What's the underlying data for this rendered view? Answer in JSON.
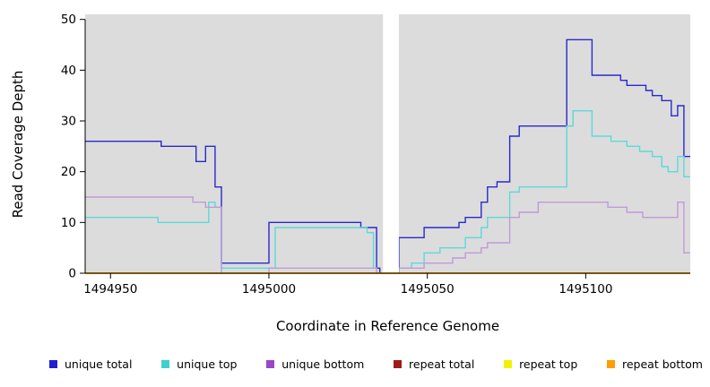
{
  "figure": {
    "background": "#FFFFFF"
  },
  "chart_data": {
    "type": "line",
    "step": true,
    "title": "",
    "xlabel": "Coordinate in Reference Genome",
    "ylabel": "Read Coverage Depth",
    "xlim": [
      1494942,
      1495133
    ],
    "ylim": [
      0,
      51
    ],
    "x_ticks": [
      1494950,
      1495000,
      1495050,
      1495100
    ],
    "y_ticks": [
      0,
      10,
      20,
      30,
      40,
      50
    ],
    "panel_background": "#DCDCDC",
    "grid": false,
    "masked_region": {
      "from": 1495036,
      "to": 1495041,
      "color": "#FFFFFF"
    },
    "series": [
      {
        "name": "unique total",
        "color": "#2929CE",
        "points": [
          [
            1494942,
            26
          ],
          [
            1494966,
            25
          ],
          [
            1494977,
            22
          ],
          [
            1494980,
            25
          ],
          [
            1494983,
            17
          ],
          [
            1494985,
            2
          ],
          [
            1495000,
            10
          ],
          [
            1495029,
            9
          ],
          [
            1495034,
            1
          ],
          [
            1495035,
            0
          ],
          [
            1495041,
            7
          ],
          [
            1495049,
            9
          ],
          [
            1495060,
            10
          ],
          [
            1495062,
            11
          ],
          [
            1495067,
            14
          ],
          [
            1495069,
            17
          ],
          [
            1495072,
            18
          ],
          [
            1495076,
            27
          ],
          [
            1495079,
            29
          ],
          [
            1495094,
            46
          ],
          [
            1495102,
            39
          ],
          [
            1495111,
            38
          ],
          [
            1495113,
            37
          ],
          [
            1495119,
            36
          ],
          [
            1495121,
            35
          ],
          [
            1495124,
            34
          ],
          [
            1495127,
            31
          ],
          [
            1495129,
            33
          ],
          [
            1495131,
            23
          ]
        ]
      },
      {
        "name": "unique top",
        "color": "#5CD9D9",
        "points": [
          [
            1494942,
            11
          ],
          [
            1494965,
            10
          ],
          [
            1494981,
            14
          ],
          [
            1494983,
            13
          ],
          [
            1494985,
            1
          ],
          [
            1495002,
            9
          ],
          [
            1495031,
            8
          ],
          [
            1495033,
            1
          ],
          [
            1495034,
            0
          ],
          [
            1495041,
            1
          ],
          [
            1495045,
            2
          ],
          [
            1495049,
            4
          ],
          [
            1495054,
            5
          ],
          [
            1495062,
            7
          ],
          [
            1495067,
            9
          ],
          [
            1495069,
            11
          ],
          [
            1495076,
            16
          ],
          [
            1495079,
            17
          ],
          [
            1495094,
            29
          ],
          [
            1495096,
            32
          ],
          [
            1495102,
            27
          ],
          [
            1495108,
            26
          ],
          [
            1495113,
            25
          ],
          [
            1495117,
            24
          ],
          [
            1495121,
            23
          ],
          [
            1495124,
            21
          ],
          [
            1495126,
            20
          ],
          [
            1495129,
            23
          ],
          [
            1495131,
            19
          ]
        ]
      },
      {
        "name": "unique bottom",
        "color": "#C09AD9",
        "points": [
          [
            1494942,
            15
          ],
          [
            1494976,
            14
          ],
          [
            1494980,
            13
          ],
          [
            1494985,
            0
          ],
          [
            1495000,
            1
          ],
          [
            1495034,
            0
          ],
          [
            1495041,
            1
          ],
          [
            1495049,
            2
          ],
          [
            1495058,
            3
          ],
          [
            1495062,
            4
          ],
          [
            1495067,
            5
          ],
          [
            1495069,
            6
          ],
          [
            1495076,
            11
          ],
          [
            1495079,
            12
          ],
          [
            1495085,
            14
          ],
          [
            1495107,
            13
          ],
          [
            1495113,
            12
          ],
          [
            1495118,
            11
          ],
          [
            1495129,
            14
          ],
          [
            1495131,
            4
          ]
        ]
      },
      {
        "name": "repeat total",
        "color": "#9E1B1B",
        "points": [
          [
            1494942,
            0
          ],
          [
            1495133,
            0
          ]
        ]
      },
      {
        "name": "repeat top",
        "color": "#F2F200",
        "points": [
          [
            1494942,
            0
          ],
          [
            1495133,
            0
          ]
        ]
      },
      {
        "name": "repeat bottom",
        "color": "#FF9D00",
        "points": [
          [
            1494942,
            0
          ],
          [
            1495133,
            0
          ]
        ]
      }
    ],
    "legend": {
      "position": "bottom",
      "items": [
        {
          "label": "unique total",
          "color": "#1F1FD1"
        },
        {
          "label": "unique top",
          "color": "#3ECFCF"
        },
        {
          "label": "unique bottom",
          "color": "#9A46C8"
        },
        {
          "label": "repeat total",
          "color": "#9E1B1B"
        },
        {
          "label": "repeat top",
          "color": "#F2F200"
        },
        {
          "label": "repeat bottom",
          "color": "#FF9D00"
        }
      ]
    }
  }
}
